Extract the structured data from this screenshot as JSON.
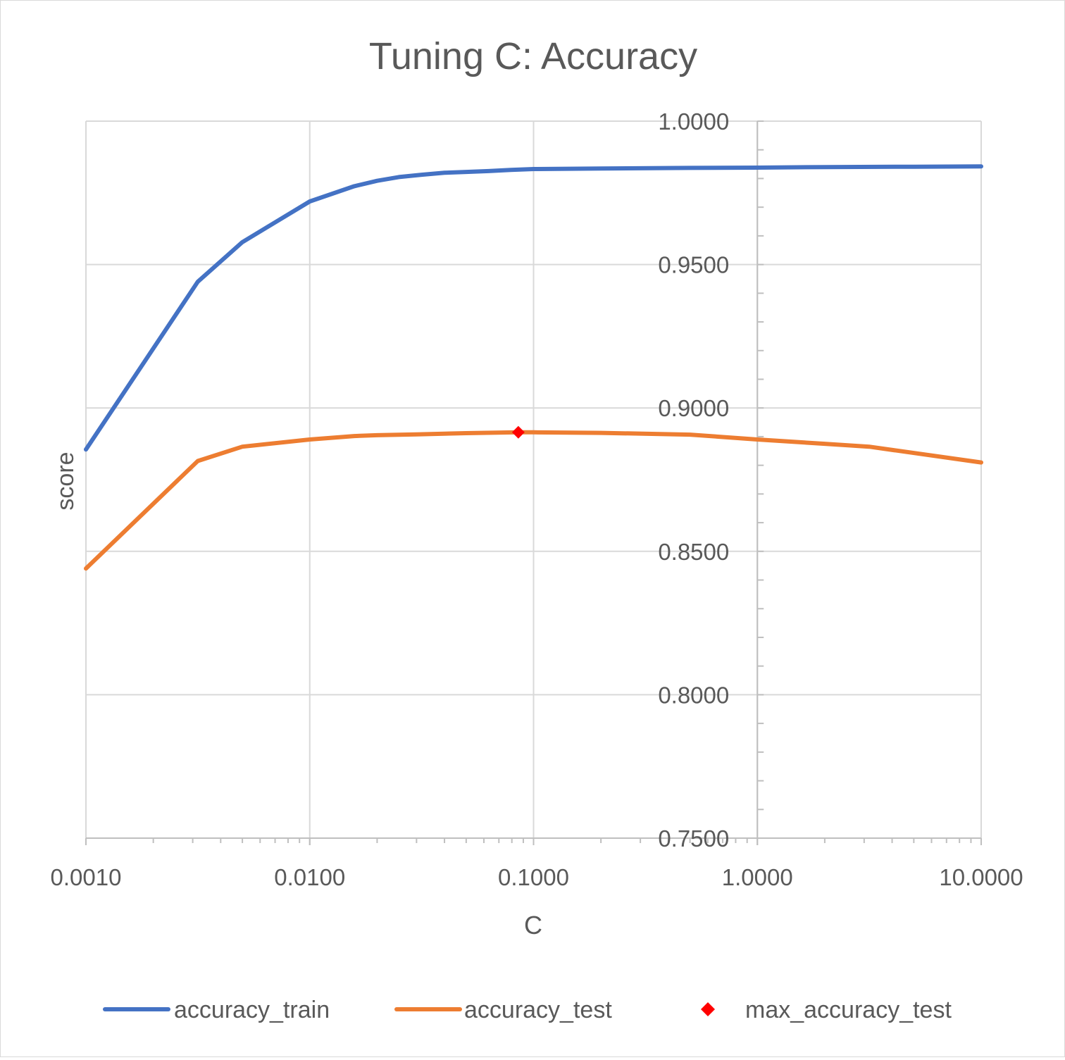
{
  "chart_data": {
    "type": "line",
    "title": "Tuning C: Accuracy",
    "xlabel": "C",
    "ylabel": "score",
    "x_scale": "log",
    "xlim": [
      0.001,
      10
    ],
    "ylim": [
      0.75,
      1.0
    ],
    "x_ticks": [
      0.001,
      0.01,
      0.1,
      1,
      10
    ],
    "x_tick_labels": [
      "0.0010",
      "0.0100",
      "0.1000",
      "1.0000",
      "10.0000"
    ],
    "y_ticks": [
      0.75,
      0.8,
      0.85,
      0.9,
      0.95,
      1.0
    ],
    "y_tick_labels": [
      "0.7500",
      "0.8000",
      "0.8500",
      "0.9000",
      "0.9500",
      "1.0000"
    ],
    "y_axis_crosses_x_at": 1.0,
    "grid": true,
    "legend_position": "bottom",
    "series": [
      {
        "name": "accuracy_train",
        "kind": "line",
        "color": "#4472C4",
        "x": [
          0.001,
          0.00316,
          0.005,
          0.01,
          0.0158,
          0.02,
          0.025,
          0.0316,
          0.04,
          0.05,
          0.063,
          0.079,
          0.1,
          0.2,
          0.5,
          1,
          2,
          5,
          10
        ],
        "values": [
          0.8855,
          0.944,
          0.9578,
          0.972,
          0.9773,
          0.9792,
          0.9805,
          0.9813,
          0.982,
          0.9823,
          0.9826,
          0.983,
          0.9833,
          0.9835,
          0.9837,
          0.9838,
          0.984,
          0.9841,
          0.9842
        ]
      },
      {
        "name": "accuracy_test",
        "kind": "line",
        "color": "#ED7D31",
        "x": [
          0.001,
          0.00316,
          0.005,
          0.01,
          0.0158,
          0.02,
          0.03,
          0.05,
          0.0855,
          0.1,
          0.2,
          0.5,
          1,
          2,
          3.16,
          10
        ],
        "values": [
          0.844,
          0.8815,
          0.8865,
          0.889,
          0.8902,
          0.8905,
          0.8908,
          0.8912,
          0.8915,
          0.8915,
          0.8913,
          0.8907,
          0.889,
          0.8875,
          0.8865,
          0.881
        ]
      },
      {
        "name": "max_accuracy_test",
        "kind": "marker",
        "marker": "diamond",
        "color": "#FF0000",
        "x": [
          0.0855
        ],
        "values": [
          0.8915
        ]
      }
    ]
  }
}
